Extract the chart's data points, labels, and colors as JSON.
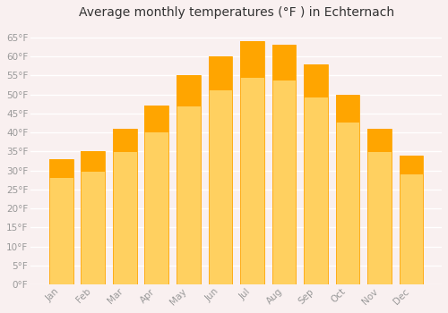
{
  "title": "Average monthly temperatures (°F ) in Echternach",
  "months": [
    "Jan",
    "Feb",
    "Mar",
    "Apr",
    "May",
    "Jun",
    "Jul",
    "Aug",
    "Sep",
    "Oct",
    "Nov",
    "Dec"
  ],
  "values": [
    33,
    35,
    41,
    47,
    55,
    60,
    64,
    63,
    58,
    50,
    41,
    34
  ],
  "bar_color_top": "#FFA500",
  "bar_color_bottom": "#FFD060",
  "bar_edge_color": "#FFA500",
  "background_color": "#F9F0F0",
  "grid_color": "#FFFFFF",
  "tick_color": "#999999",
  "title_color": "#333333",
  "title_fontsize": 10,
  "tick_fontsize": 7.5,
  "ylim": [
    0,
    68
  ],
  "yticks": [
    0,
    5,
    10,
    15,
    20,
    25,
    30,
    35,
    40,
    45,
    50,
    55,
    60,
    65
  ],
  "bar_width": 0.75
}
